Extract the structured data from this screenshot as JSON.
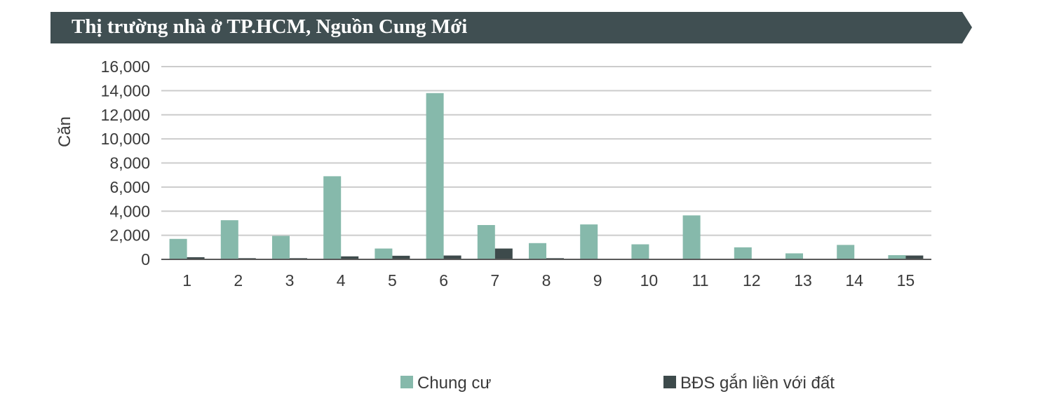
{
  "banner": {
    "title": "Thị trường nhà ở TP.HCM, Nguồn Cung Mới"
  },
  "colors": {
    "banner": "#404f52",
    "series1": "#86b9ab",
    "series2": "#3d4a4b",
    "grid": "#cccccc",
    "axis": "#595959"
  },
  "chart_data": {
    "type": "bar",
    "title": "Thị trường nhà ở TP.HCM, Nguồn Cung Mới",
    "ylabel": "Căn",
    "xlabel": "",
    "categories": [
      "1",
      "2",
      "3",
      "4",
      "5",
      "6",
      "7",
      "8",
      "9",
      "10",
      "11",
      "12",
      "13",
      "14",
      "15"
    ],
    "ylim": [
      0,
      16000
    ],
    "yticks": [
      0,
      2000,
      4000,
      6000,
      8000,
      10000,
      12000,
      14000,
      16000
    ],
    "ytick_labels": [
      "0",
      "2,000",
      "4,000",
      "6,000",
      "8,000",
      "10,000",
      "12,000",
      "14,000",
      "16,000"
    ],
    "grid": true,
    "legend_position": "bottom",
    "series": [
      {
        "name": "Chung cư",
        "values": [
          1700,
          3250,
          1950,
          6900,
          900,
          13800,
          2850,
          1350,
          2900,
          1250,
          3650,
          1000,
          500,
          1200,
          350
        ]
      },
      {
        "name": "BĐS gắn liền với đất",
        "values": [
          180,
          100,
          100,
          250,
          300,
          320,
          900,
          100,
          30,
          20,
          20,
          20,
          20,
          20,
          320
        ]
      }
    ]
  }
}
